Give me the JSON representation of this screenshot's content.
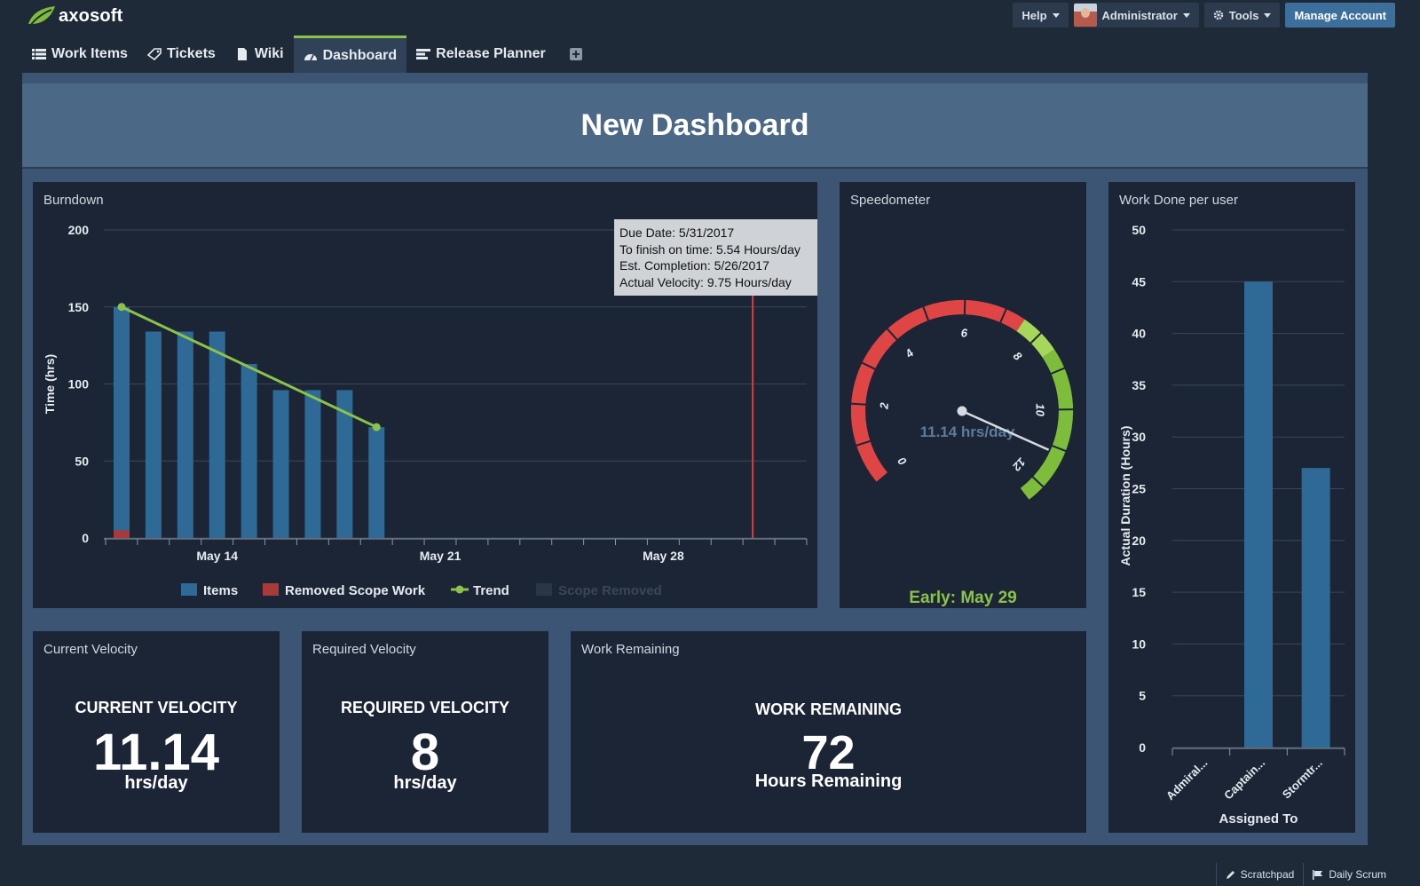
{
  "app": {
    "logo_text": "axosoft"
  },
  "topbar": {
    "help_label": "Help",
    "user_label": "Administrator",
    "tools_label": "Tools",
    "manage_label": "Manage Account"
  },
  "nav": {
    "tabs": [
      {
        "label": "Work Items",
        "icon": "list-icon"
      },
      {
        "label": "Tickets",
        "icon": "ticket-icon"
      },
      {
        "label": "Wiki",
        "icon": "document-icon"
      },
      {
        "label": "Dashboard",
        "icon": "dashboard-icon",
        "active": true
      },
      {
        "label": "Release Planner",
        "icon": "planner-icon"
      }
    ],
    "add_tab_icon": "plus-icon"
  },
  "dashboard": {
    "title": "New Dashboard"
  },
  "burndown": {
    "panel_title": "Burndown",
    "tooltip": {
      "line1": "Due Date: 5/31/2017",
      "line2": "To finish on time: 5.54 Hours/day",
      "line3": "Est. Completion: 5/26/2017",
      "line4": "Actual Velocity: 9.75 Hours/day"
    },
    "due_label": "Due Date: May 31"
  },
  "speedometer": {
    "panel_title": "Speedometer",
    "reading": "11.14 hrs/day",
    "footer": "Early: May 29"
  },
  "work_done": {
    "panel_title": "Work Done per user"
  },
  "current_velocity": {
    "panel_title": "Current Velocity",
    "label": "CURRENT VELOCITY",
    "value": "11.14",
    "unit": "hrs/day"
  },
  "required_velocity": {
    "panel_title": "Required Velocity",
    "label": "REQUIRED VELOCITY",
    "value": "8",
    "unit": "hrs/day"
  },
  "work_remaining": {
    "panel_title": "Work Remaining",
    "label": "WORK REMAINING",
    "value": "72",
    "unit": "Hours Remaining"
  },
  "footer": {
    "scratchpad_label": "Scratchpad",
    "scrum_label": "Daily Scrum"
  },
  "colors": {
    "accent_green": "#8bc34a",
    "bar_blue": "#2f6a96",
    "removed_red": "#a83a3a",
    "due_line": "#e03c3c"
  },
  "chart_data": [
    {
      "type": "bar",
      "id": "burndown",
      "ylabel": "Time (hrs)",
      "ylim": [
        0,
        200
      ],
      "yticks": [
        0,
        50,
        100,
        150,
        200
      ],
      "xticks": [
        "May 14",
        "May 21",
        "May 28"
      ],
      "dates": [
        "May 11",
        "May 12",
        "May 13",
        "May 14",
        "May 15",
        "May 16",
        "May 17",
        "May 18",
        "May 19"
      ],
      "series": [
        {
          "name": "Items",
          "values": [
            145,
            134,
            134,
            134,
            113,
            96,
            96,
            96,
            72
          ]
        },
        {
          "name": "Removed Scope Work",
          "values": [
            5,
            0,
            0,
            0,
            0,
            0,
            0,
            0,
            0
          ]
        },
        {
          "name": "Trend",
          "type": "line",
          "points": [
            [
              "May 11",
              150
            ],
            [
              "May 19",
              72
            ]
          ]
        },
        {
          "name": "Scope Removed",
          "hidden": true
        }
      ],
      "due_date": "May 31",
      "legend": "bottom"
    },
    {
      "type": "bar",
      "id": "work-done",
      "ylabel": "Actual Duration (Hours)",
      "xlabel": "Assigned To",
      "ylim": [
        0,
        50
      ],
      "yticks": [
        0,
        5,
        10,
        15,
        20,
        25,
        30,
        35,
        40,
        45,
        50
      ],
      "categories": [
        "Admiral...",
        "Captain...",
        "Stormtr..."
      ],
      "values": [
        0,
        45,
        27
      ]
    },
    {
      "type": "gauge",
      "id": "speedometer",
      "min": 0,
      "max": 12,
      "ticks": [
        0,
        2,
        4,
        6,
        8,
        10,
        12
      ],
      "value": 11.14,
      "bands": [
        {
          "from": 0,
          "to": 7.5,
          "color": "#e04545"
        },
        {
          "from": 7.5,
          "to": 8.5,
          "color": "#a6d65a"
        },
        {
          "from": 8.5,
          "to": 13,
          "color": "#7dbd3b"
        }
      ]
    }
  ]
}
